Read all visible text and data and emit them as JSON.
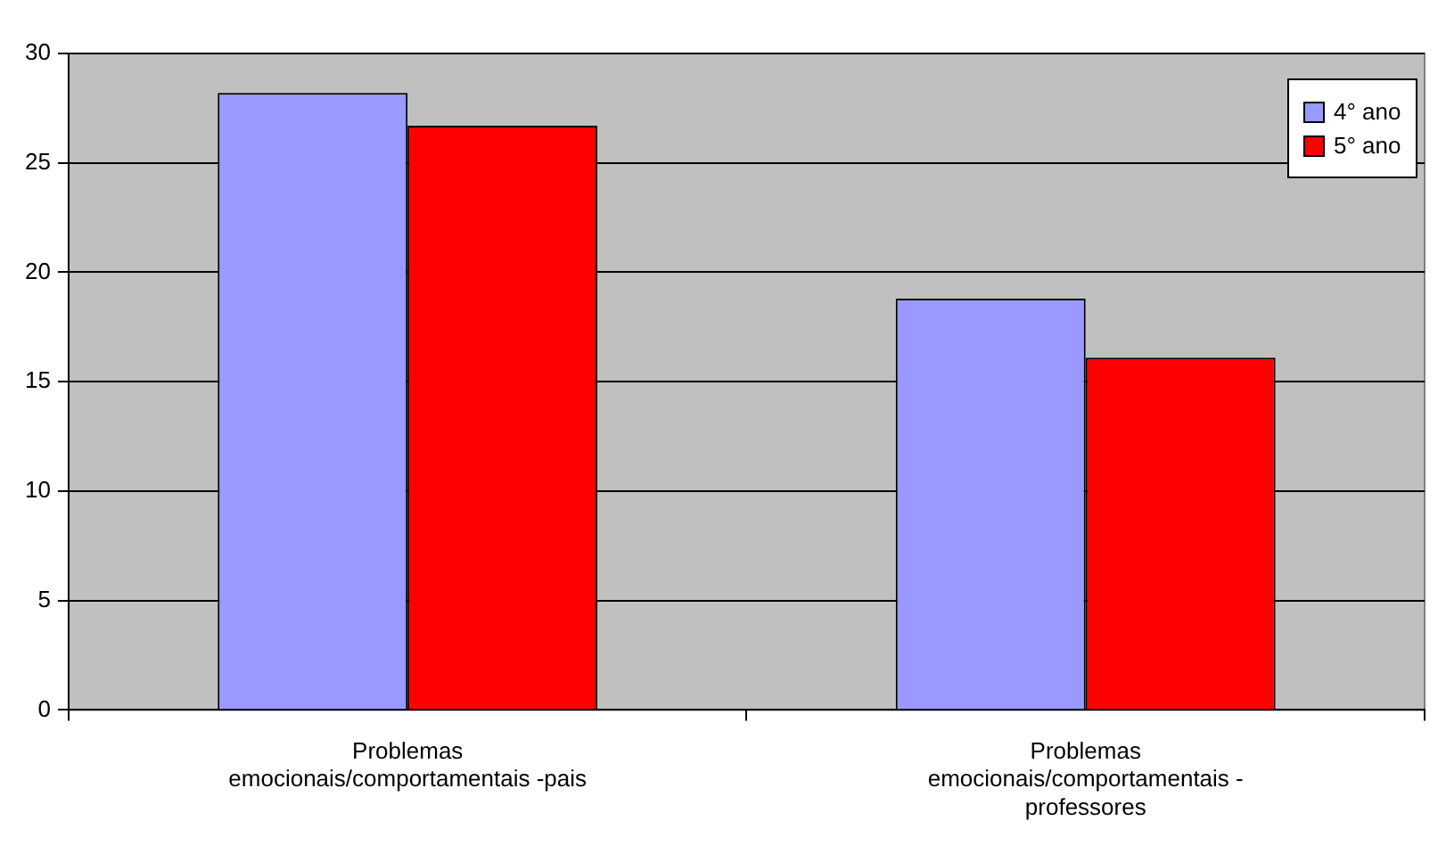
{
  "chart_data": {
    "type": "bar",
    "categories": [
      "Problemas emocionais/comportamentais -pais",
      "Problemas emocionais/comportamentais - professores"
    ],
    "series": [
      {
        "name": "4° ano",
        "color": "#9999ff",
        "values": [
          28.2,
          18.8
        ]
      },
      {
        "name": "5° ano",
        "color": "#ff0000",
        "values": [
          26.7,
          16.1
        ]
      }
    ],
    "ylim": [
      0,
      30
    ],
    "yticks": [
      0,
      5,
      10,
      15,
      20,
      25,
      30
    ],
    "grid": "y",
    "legend": "top right"
  }
}
